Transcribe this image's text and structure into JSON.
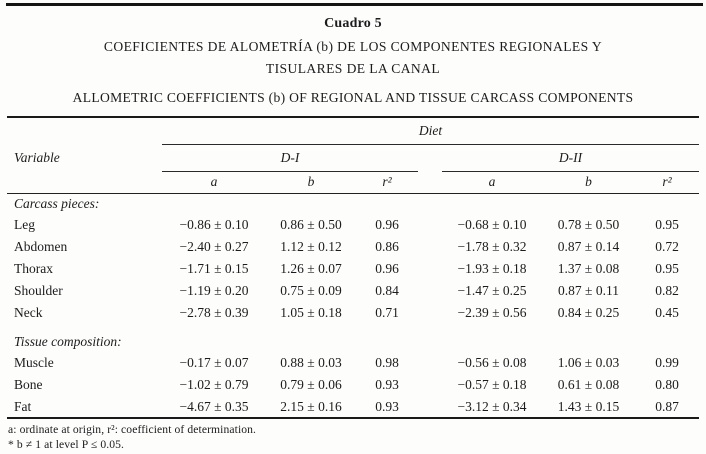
{
  "table": {
    "label": "Cuadro 5",
    "title_es_line1": "COEFICIENTES DE ALOMETRÍA (b) DE LOS COMPONENTES REGIONALES Y",
    "title_es_line2": "TISULARES DE LA CANAL",
    "title_en": "ALLOMETRIC COEFFICIENTS (b) OF REGIONAL AND TISSUE CARCASS COMPONENTS",
    "header": {
      "diet": "Diet",
      "variable": "Variable",
      "group1": "D-I",
      "group2": "D-II",
      "subcols": [
        "a",
        "b",
        "r²"
      ]
    },
    "sections": [
      {
        "title": "Carcass pieces:",
        "rows": [
          {
            "cells": [
              "Leg",
              "−0.86 ± 0.10",
              "0.86 ± 0.50",
              "0.96",
              "−0.68 ± 0.10",
              "0.78 ± 0.50",
              "0.95"
            ]
          },
          {
            "cells": [
              "Abdomen",
              "−2.40 ± 0.27",
              "1.12 ± 0.12",
              "0.86",
              "−1.78 ± 0.32",
              "0.87 ± 0.14",
              "0.72"
            ]
          },
          {
            "cells": [
              "Thorax",
              "−1.71 ± 0.15",
              "1.26 ± 0.07",
              "0.96",
              "−1.93 ± 0.18",
              "1.37 ± 0.08",
              "0.95"
            ]
          },
          {
            "cells": [
              "Shoulder",
              "−1.19 ± 0.20",
              "0.75 ± 0.09",
              "0.84",
              "−1.47 ± 0.25",
              "0.87 ± 0.11",
              "0.82"
            ]
          },
          {
            "cells": [
              "Neck",
              "−2.78 ± 0.39",
              "1.05 ± 0.18",
              "0.71",
              "−2.39 ± 0.56",
              "0.84 ± 0.25",
              "0.45"
            ]
          }
        ]
      },
      {
        "title": "Tissue composition:",
        "rows": [
          {
            "cells": [
              "Muscle",
              "−0.17 ± 0.07",
              "0.88 ± 0.03",
              "0.98",
              "−0.56 ± 0.08",
              "1.06 ± 0.03",
              "0.99"
            ]
          },
          {
            "cells": [
              "Bone",
              "−1.02 ± 0.79",
              "0.79 ± 0.06",
              "0.93",
              "−0.57 ± 0.18",
              "0.61 ± 0.08",
              "0.80"
            ]
          },
          {
            "cells": [
              "Fat",
              "−4.67 ± 0.35",
              "2.15 ± 0.16",
              "0.93",
              "−3.12 ± 0.34",
              "1.43 ± 0.15",
              "0.87"
            ]
          }
        ]
      }
    ],
    "footnotes": {
      "line1": "a: ordinate at origin, r²: coefficient of determination.",
      "line2": "* b ≠ 1 at level P ≤ 0.05."
    }
  }
}
